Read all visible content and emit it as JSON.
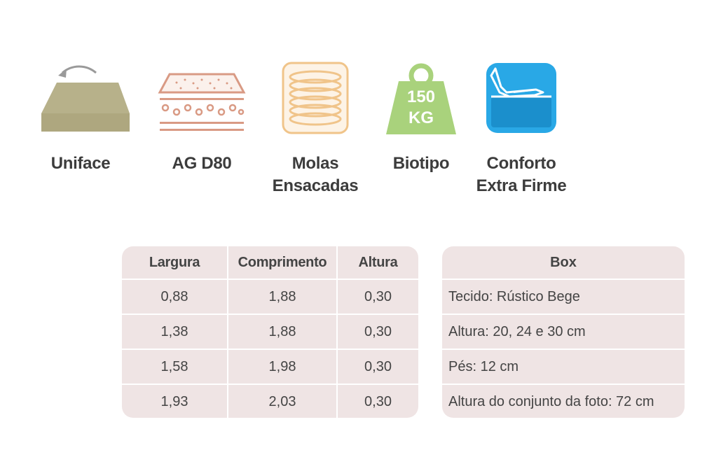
{
  "features": [
    {
      "icon": "mattress-flip-icon",
      "label_lines": [
        "Uniface"
      ]
    },
    {
      "icon": "foam-layer-icon",
      "label_lines": [
        "AG D80"
      ]
    },
    {
      "icon": "pocket-spring-icon",
      "label_lines": [
        "Molas",
        "Ensacadas"
      ]
    },
    {
      "icon": "weight-150kg-icon",
      "weight_text": [
        "150",
        "KG"
      ],
      "label_lines": [
        "Biotipo"
      ]
    },
    {
      "icon": "firm-comfort-icon",
      "label_lines": [
        "Conforto",
        "Extra Firme"
      ]
    }
  ],
  "specs_table": {
    "headers": [
      "Largura",
      "Comprimento",
      "Altura"
    ],
    "rows": [
      [
        "0,88",
        "1,88",
        "0,30"
      ],
      [
        "1,38",
        "1,88",
        "0,30"
      ],
      [
        "1,58",
        "1,98",
        "0,30"
      ],
      [
        "1,93",
        "2,03",
        "0,30"
      ]
    ]
  },
  "box_table": {
    "header": "Box",
    "rows": [
      "Tecido: Rústico Bege",
      "Altura: 20, 24 e 30 cm",
      "Pés: 12 cm",
      "Altura do conjunto da foto: 72 cm"
    ]
  },
  "colors": {
    "olive": "#b7b18a",
    "salmon": "#d99a84",
    "peach": "#f0c48a",
    "green": "#a9d27c",
    "blue": "#29a8e6",
    "table_bg": "#efe4e4"
  }
}
